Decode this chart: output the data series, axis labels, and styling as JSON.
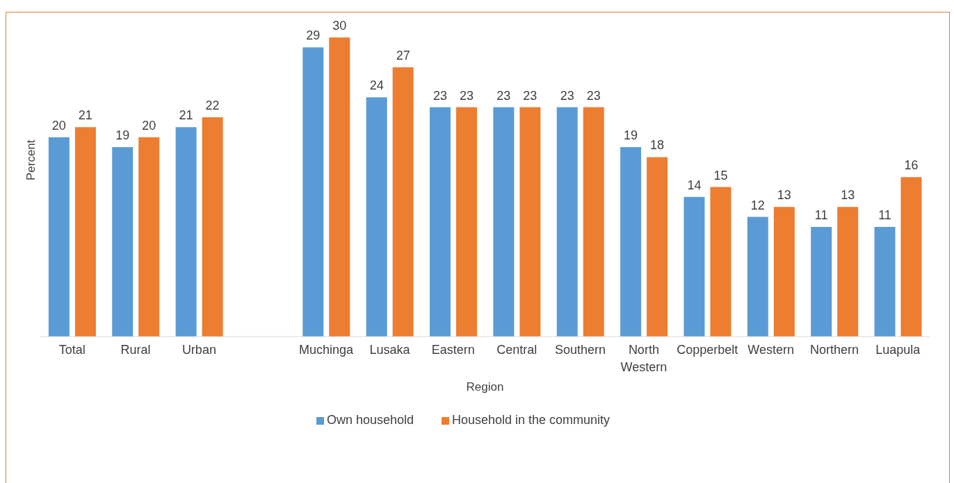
{
  "chart_data": {
    "type": "bar",
    "xlabel": "Region",
    "ylabel": "Percent",
    "categories": [
      "Total",
      "Rural",
      "Urban",
      null,
      "Muchinga",
      "Lusaka",
      "Eastern",
      "Central",
      "Southern",
      "North Western",
      "Copperbelt",
      "Western",
      "Northern",
      "Luapula"
    ],
    "series": [
      {
        "name": "Own household",
        "color": "#5b9bd5",
        "values": [
          20,
          19,
          21,
          null,
          29,
          24,
          23,
          23,
          23,
          19,
          14,
          12,
          11,
          11
        ]
      },
      {
        "name": "Household in the community",
        "color": "#ed7d31",
        "values": [
          21,
          20,
          22,
          null,
          30,
          27,
          23,
          23,
          23,
          18,
          15,
          13,
          13,
          16
        ]
      }
    ],
    "data_labels": true,
    "legend": "bottom",
    "tick_labels": "x"
  }
}
